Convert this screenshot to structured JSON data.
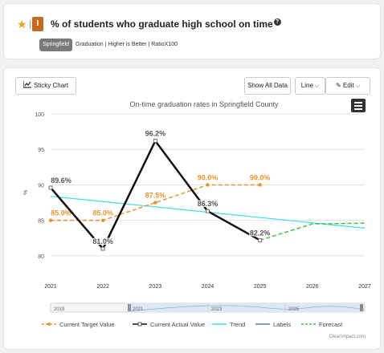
{
  "header": {
    "star_icon": "star-icon",
    "indicator_badge": "I",
    "title": "% of students who graduate high school on time",
    "help_icon": "?",
    "location": "Springfield",
    "meta": "Graduation | Higher is Better | RatioX100"
  },
  "toolbar": {
    "sticky_chart": "Sticky Chart",
    "show_all_data": "Show All Data",
    "line": "Line",
    "edit": "Edit"
  },
  "chart_data": {
    "type": "line",
    "title": "On-time graduation rates in Springfield County",
    "ylabel": "%",
    "xlim": [
      2021,
      2027
    ],
    "ylim": [
      77.5,
      100
    ],
    "x_ticks": [
      2021,
      2022,
      2023,
      2024,
      2025,
      2026,
      2027
    ],
    "y_ticks": [
      80,
      85,
      90,
      95,
      100
    ],
    "series": [
      {
        "name": "Current Target Value",
        "color": "#e8962b",
        "dashed": true,
        "marker": "circle",
        "x": [
          2021,
          2022,
          2023,
          2024,
          2025
        ],
        "values": [
          85.0,
          85.0,
          87.5,
          90.0,
          90.0
        ],
        "labels": [
          "85.0%",
          "85.0%",
          "87.5%",
          "90.0%",
          "90.0%"
        ]
      },
      {
        "name": "Current Actual Value",
        "color": "#111111",
        "dashed": false,
        "marker": "square",
        "x": [
          2021,
          2022,
          2023,
          2024,
          2025
        ],
        "values": [
          89.6,
          81.0,
          96.2,
          86.3,
          82.2
        ],
        "labels": [
          "89.6%",
          "81.0%",
          "96.2%",
          "86.3%",
          "82.2%"
        ]
      },
      {
        "name": "Trend",
        "color": "#3ee0e0",
        "dashed": false,
        "marker": "none",
        "x": [
          2021,
          2027
        ],
        "values": [
          88.4,
          83.9
        ]
      },
      {
        "name": "Labels",
        "color": "#5b7fb5",
        "dashed": false,
        "marker": "none",
        "x": [],
        "values": []
      },
      {
        "name": "Forecast",
        "color": "#3ec43e",
        "dashed": true,
        "marker": "none",
        "x": [
          2025,
          2026,
          2027
        ],
        "values": [
          82.2,
          84.5,
          84.6
        ]
      }
    ],
    "navigator_ticks": [
      "2019",
      "2021",
      "2023",
      "2025"
    ],
    "credit": "ClearImpact.com"
  }
}
